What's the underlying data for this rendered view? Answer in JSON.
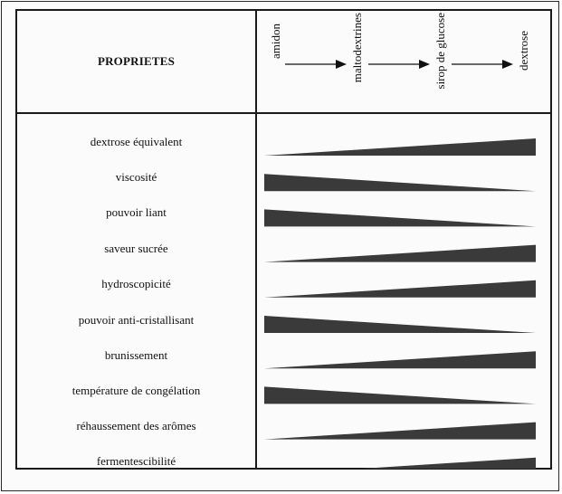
{
  "header": {
    "label": "PROPRIETES",
    "stages": [
      "amidon",
      "maltodextrines",
      "sirop de glucose",
      "dextrose"
    ]
  },
  "properties": [
    {
      "label": "dextrose équivalent",
      "trend": "increasing"
    },
    {
      "label": "viscosité",
      "trend": "decreasing"
    },
    {
      "label": "pouvoir liant",
      "trend": "decreasing"
    },
    {
      "label": "saveur sucrée",
      "trend": "increasing"
    },
    {
      "label": "hydroscopicité",
      "trend": "increasing"
    },
    {
      "label": "pouvoir anti-cristallisant",
      "trend": "decreasing"
    },
    {
      "label": "brunissement",
      "trend": "increasing"
    },
    {
      "label": "température de congélation",
      "trend": "decreasing"
    },
    {
      "label": "réhaussement des arômes",
      "trend": "increasing"
    },
    {
      "label": "fermentescibilité",
      "trend": "increasing"
    }
  ],
  "colors": {
    "wedge": "#3a3a3a",
    "border": "#1a1a1a"
  }
}
